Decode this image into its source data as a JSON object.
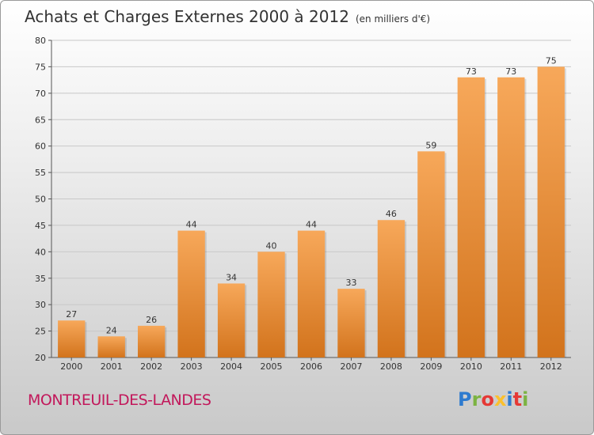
{
  "header": {
    "title": "Achats et Charges Externes 2000 à 2012",
    "unit": "(en milliers d'€)"
  },
  "footer": {
    "place": "MONTREUIL-DES-LANDES",
    "logo": [
      "P",
      "r",
      "o",
      "x",
      "i",
      "t",
      "i"
    ],
    "logo_colors": [
      "#2e7bcf",
      "#7cb342",
      "#e53935",
      "#fbc02d",
      "#2e7bcf",
      "#e53935",
      "#7cb342"
    ]
  },
  "chart_data": {
    "type": "bar",
    "title": "Achats et Charges Externes 2000 à 2012",
    "subtitle": "(en milliers d'€)",
    "categories": [
      "2000",
      "2001",
      "2002",
      "2003",
      "2004",
      "2005",
      "2006",
      "2007",
      "2008",
      "2009",
      "2010",
      "2011",
      "2012"
    ],
    "values": [
      27,
      24,
      26,
      44,
      34,
      40,
      44,
      33,
      46,
      59,
      73,
      73,
      75
    ],
    "ylim": [
      20,
      80
    ],
    "yticks": [
      20,
      25,
      30,
      35,
      40,
      45,
      50,
      55,
      60,
      65,
      70,
      75,
      80
    ],
    "grid": true,
    "bar_color_top": "#f7a85a",
    "bar_color_bottom": "#d2731c"
  }
}
